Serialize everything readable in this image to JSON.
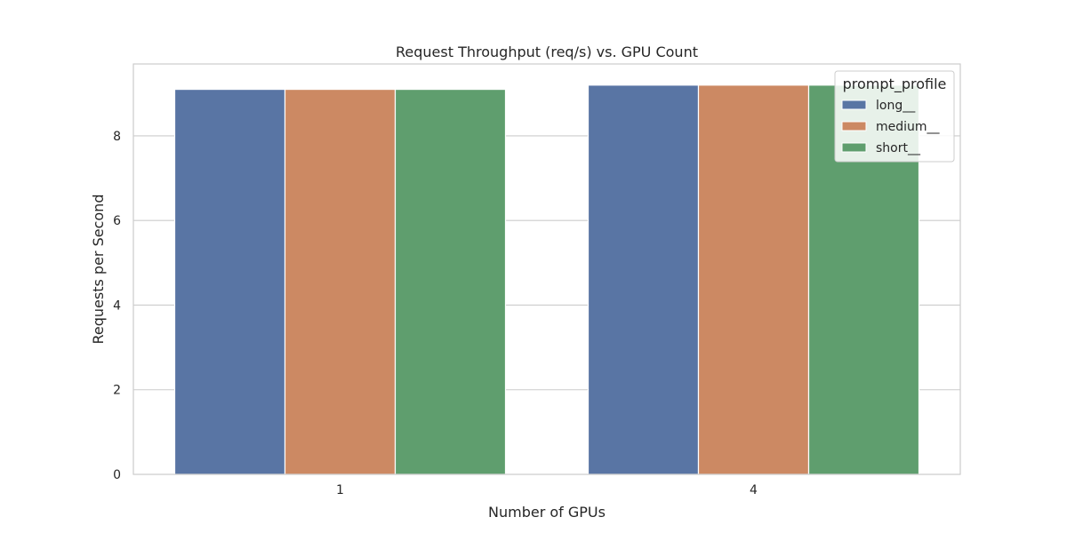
{
  "chart_data": {
    "type": "bar",
    "title": "Request Throughput (req/s) vs. GPU Count",
    "xlabel": "Number of GPUs",
    "ylabel": "Requests per Second",
    "categories": [
      "1",
      "4"
    ],
    "series": [
      {
        "name": "long__",
        "values": [
          9.1,
          9.2
        ],
        "color": "#5975a4"
      },
      {
        "name": "medium__",
        "values": [
          9.1,
          9.2
        ],
        "color": "#cc8963"
      },
      {
        "name": "short__",
        "values": [
          9.1,
          9.2
        ],
        "color": "#5f9e6e"
      }
    ],
    "ylim": [
      0,
      9.7
    ],
    "yticks": [
      0,
      2,
      4,
      6,
      8
    ],
    "grid": true,
    "legend": {
      "title": "prompt_profile",
      "placement": "top-right"
    }
  }
}
